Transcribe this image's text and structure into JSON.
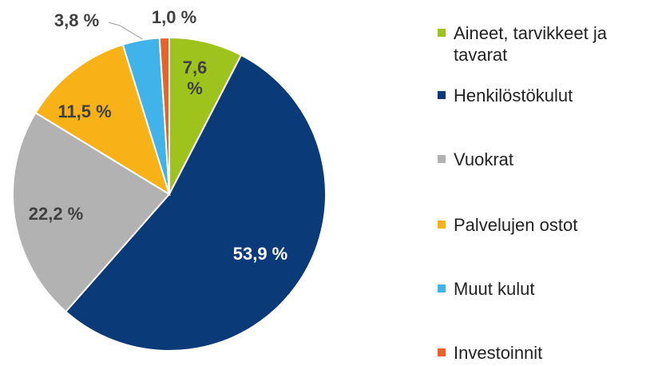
{
  "chart_data": {
    "type": "pie",
    "categories": [
      "Aineet, tarvikkeet ja tavarat",
      "Henkilöstökulut",
      "Vuokrat",
      "Palvelujen ostot",
      "Muut kulut",
      "Investoinnit"
    ],
    "values": [
      7.6,
      53.9,
      22.2,
      11.5,
      3.8,
      1.0
    ],
    "value_labels": [
      "7,6 %",
      "53,9 %",
      "22,2 %",
      "11,5 %",
      "3,8 %",
      "1,0 %"
    ],
    "colors": [
      "#9dc31c",
      "#0a3a78",
      "#b2b2b2",
      "#f8b218",
      "#40b4ea",
      "#e8622a"
    ],
    "legend": "right"
  }
}
